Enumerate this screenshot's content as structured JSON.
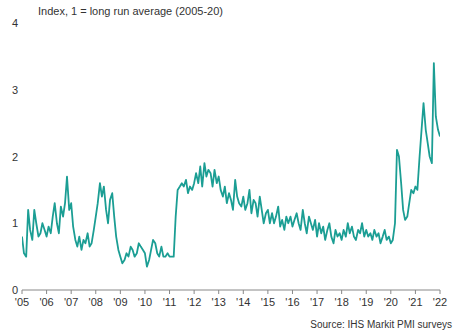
{
  "chart_data": {
    "type": "line",
    "y_label": "Index, 1 = long run average (2005-20)",
    "source": "Source: IHS Markit PMI surveys",
    "color": "#1b9e94",
    "grid": false,
    "xlim": [
      2005,
      2022
    ],
    "ylim": [
      0,
      4
    ],
    "yticks": [
      0,
      1,
      2,
      3,
      4
    ],
    "xticks": [
      {
        "value": 2005,
        "label": "'05"
      },
      {
        "value": 2006,
        "label": "'06"
      },
      {
        "value": 2007,
        "label": "'07"
      },
      {
        "value": 2008,
        "label": "'08"
      },
      {
        "value": 2009,
        "label": "'09"
      },
      {
        "value": 2010,
        "label": "'10"
      },
      {
        "value": 2011,
        "label": "'11"
      },
      {
        "value": 2012,
        "label": "'12"
      },
      {
        "value": 2013,
        "label": "'13"
      },
      {
        "value": 2014,
        "label": "'14"
      },
      {
        "value": 2015,
        "label": "'15"
      },
      {
        "value": 2016,
        "label": "'16"
      },
      {
        "value": 2017,
        "label": "'17"
      },
      {
        "value": 2018,
        "label": "'18"
      },
      {
        "value": 2019,
        "label": "'19"
      },
      {
        "value": 2020,
        "label": "'20"
      },
      {
        "value": 2021,
        "label": "'21"
      },
      {
        "value": 2022,
        "label": "'22"
      }
    ],
    "x": [
      2005.0,
      2005.08,
      2005.17,
      2005.25,
      2005.33,
      2005.42,
      2005.5,
      2005.58,
      2005.67,
      2005.75,
      2005.83,
      2005.92,
      2006.0,
      2006.08,
      2006.17,
      2006.25,
      2006.33,
      2006.42,
      2006.5,
      2006.58,
      2006.67,
      2006.75,
      2006.83,
      2006.92,
      2007.0,
      2007.08,
      2007.17,
      2007.25,
      2007.33,
      2007.42,
      2007.5,
      2007.58,
      2007.67,
      2007.75,
      2007.83,
      2007.92,
      2008.0,
      2008.08,
      2008.17,
      2008.25,
      2008.33,
      2008.42,
      2008.5,
      2008.58,
      2008.67,
      2008.75,
      2008.83,
      2008.92,
      2009.0,
      2009.08,
      2009.17,
      2009.25,
      2009.33,
      2009.42,
      2009.5,
      2009.58,
      2009.67,
      2009.75,
      2009.83,
      2009.92,
      2010.0,
      2010.08,
      2010.17,
      2010.25,
      2010.33,
      2010.42,
      2010.5,
      2010.58,
      2010.67,
      2010.75,
      2010.83,
      2010.92,
      2011.0,
      2011.08,
      2011.17,
      2011.25,
      2011.33,
      2011.42,
      2011.5,
      2011.58,
      2011.67,
      2011.75,
      2011.83,
      2011.92,
      2012.0,
      2012.08,
      2012.17,
      2012.25,
      2012.33,
      2012.42,
      2012.5,
      2012.58,
      2012.67,
      2012.75,
      2012.83,
      2012.92,
      2013.0,
      2013.08,
      2013.17,
      2013.25,
      2013.33,
      2013.42,
      2013.5,
      2013.58,
      2013.67,
      2013.75,
      2013.83,
      2013.92,
      2014.0,
      2014.08,
      2014.17,
      2014.25,
      2014.33,
      2014.42,
      2014.5,
      2014.58,
      2014.67,
      2014.75,
      2014.83,
      2014.92,
      2015.0,
      2015.08,
      2015.17,
      2015.25,
      2015.33,
      2015.42,
      2015.5,
      2015.58,
      2015.67,
      2015.75,
      2015.83,
      2015.92,
      2016.0,
      2016.08,
      2016.17,
      2016.25,
      2016.33,
      2016.42,
      2016.5,
      2016.58,
      2016.67,
      2016.75,
      2016.83,
      2016.92,
      2017.0,
      2017.08,
      2017.17,
      2017.25,
      2017.33,
      2017.42,
      2017.5,
      2017.58,
      2017.67,
      2017.75,
      2017.83,
      2017.92,
      2018.0,
      2018.08,
      2018.17,
      2018.25,
      2018.33,
      2018.42,
      2018.5,
      2018.58,
      2018.67,
      2018.75,
      2018.83,
      2018.92,
      2019.0,
      2019.08,
      2019.17,
      2019.25,
      2019.33,
      2019.42,
      2019.5,
      2019.58,
      2019.67,
      2019.75,
      2019.83,
      2019.92,
      2020.0,
      2020.08,
      2020.17,
      2020.25,
      2020.33,
      2020.42,
      2020.5,
      2020.58,
      2020.67,
      2020.75,
      2020.83,
      2020.92,
      2021.0,
      2021.08,
      2021.17,
      2021.25,
      2021.33,
      2021.42,
      2021.5,
      2021.58,
      2021.67,
      2021.75,
      2021.83,
      2021.92,
      2022.0
    ],
    "values": [
      0.8,
      0.55,
      0.5,
      1.2,
      0.9,
      0.75,
      1.2,
      1.0,
      0.8,
      0.85,
      1.0,
      0.9,
      0.8,
      0.95,
      0.85,
      1.1,
      1.3,
      1.0,
      0.85,
      1.25,
      1.1,
      1.3,
      1.7,
      1.2,
      1.3,
      0.95,
      0.75,
      0.65,
      0.8,
      0.6,
      0.75,
      0.7,
      0.85,
      0.65,
      0.7,
      0.9,
      1.1,
      1.3,
      1.6,
      1.4,
      1.55,
      1.2,
      1.0,
      1.35,
      1.45,
      1.1,
      0.8,
      0.6,
      0.5,
      0.4,
      0.45,
      0.55,
      0.5,
      0.65,
      0.6,
      0.5,
      0.55,
      0.7,
      0.65,
      0.6,
      0.55,
      0.35,
      0.45,
      0.6,
      0.75,
      0.7,
      0.55,
      0.5,
      0.65,
      0.5,
      0.5,
      0.55,
      0.5,
      0.5,
      0.5,
      1.1,
      1.5,
      1.55,
      1.6,
      1.55,
      1.65,
      1.45,
      1.55,
      1.5,
      1.6,
      1.75,
      1.6,
      1.85,
      1.55,
      1.9,
      1.7,
      1.8,
      1.75,
      1.55,
      1.8,
      1.6,
      1.7,
      1.5,
      1.4,
      1.55,
      1.3,
      1.45,
      1.35,
      1.2,
      1.65,
      1.4,
      1.3,
      1.25,
      1.4,
      1.2,
      1.3,
      1.5,
      1.15,
      1.35,
      1.3,
      1.1,
      1.4,
      1.2,
      1.0,
      1.15,
      1.2,
      1.0,
      1.15,
      1.0,
      1.1,
      1.25,
      0.95,
      1.05,
      0.9,
      1.1,
      1.0,
      1.1,
      0.95,
      1.05,
      1.15,
      1.0,
      0.9,
      1.2,
      1.0,
      0.85,
      1.1,
      1.0,
      0.9,
      1.05,
      0.8,
      1.0,
      0.85,
      0.95,
      0.75,
      0.9,
      1.0,
      0.8,
      0.7,
      0.9,
      0.8,
      0.85,
      0.75,
      0.9,
      0.8,
      1.0,
      0.85,
      0.95,
      0.8,
      0.75,
      0.9,
      0.85,
      1.0,
      0.8,
      0.9,
      0.8,
      0.85,
      0.75,
      0.9,
      0.8,
      0.85,
      0.7,
      0.8,
      0.9,
      0.75,
      0.8,
      0.7,
      0.75,
      1.0,
      2.1,
      2.0,
      1.6,
      1.2,
      1.05,
      1.1,
      1.3,
      1.5,
      1.45,
      1.55,
      1.5,
      2.0,
      2.4,
      2.8,
      2.4,
      2.2,
      2.0,
      1.9,
      3.4,
      2.6,
      2.4,
      2.3
    ]
  }
}
